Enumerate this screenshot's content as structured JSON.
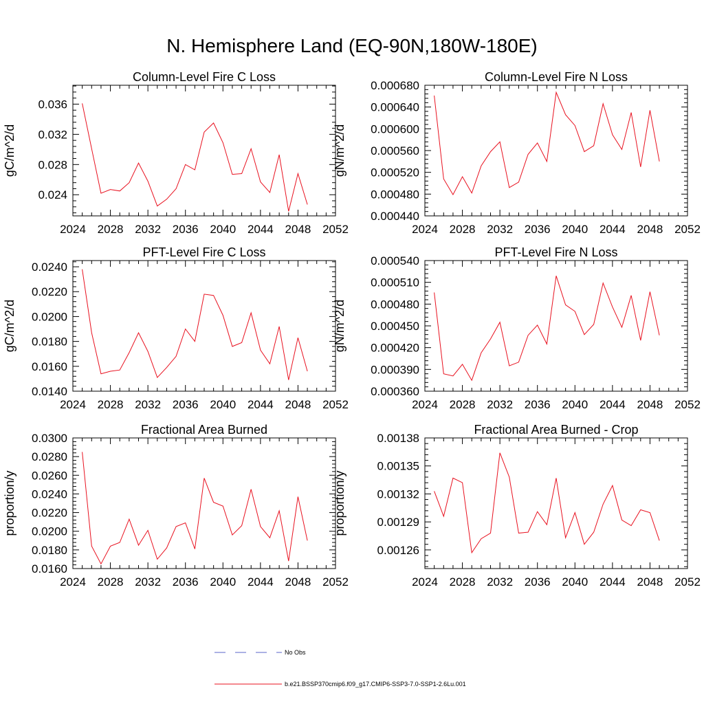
{
  "figure": {
    "title": "N. Hemisphere Land (EQ-90N,180W-180E)"
  },
  "colors": {
    "series": "#e8101e",
    "obs": "#5a63c8",
    "axis": "#000000"
  },
  "legend": [
    {
      "label": "No Obs",
      "style": "dashed",
      "color": "#5a63c8"
    },
    {
      "label": "b.e21.BSSP370cmip6.f09_g17.CMIP6-SSP3-7.0-SSP1-2.6Lu.001",
      "style": "solid",
      "color": "#e8101e"
    }
  ],
  "chart_data": [
    {
      "type": "line",
      "title": "Column-Level Fire C Loss",
      "ylabel": "gC/m^2/d",
      "xlim": [
        2024,
        2052
      ],
      "ylim": [
        0.0212,
        0.0385
      ],
      "xticks": [
        "2024",
        "2028",
        "2032",
        "2036",
        "2040",
        "2044",
        "2048",
        "2052"
      ],
      "yticks": [
        "0.024",
        "0.028",
        "0.032",
        "0.036"
      ],
      "x": [
        2025,
        2026,
        2027,
        2028,
        2029,
        2030,
        2031,
        2032,
        2033,
        2034,
        2035,
        2036,
        2037,
        2038,
        2039,
        2040,
        2041,
        2042,
        2043,
        2044,
        2045,
        2046,
        2047,
        2048,
        2049
      ],
      "values": [
        0.0361,
        0.0301,
        0.0242,
        0.0247,
        0.0245,
        0.0256,
        0.0282,
        0.0258,
        0.0225,
        0.0234,
        0.0248,
        0.028,
        0.0273,
        0.0323,
        0.0335,
        0.0309,
        0.0267,
        0.0268,
        0.0301,
        0.0257,
        0.0243,
        0.0293,
        0.0218,
        0.0268,
        0.0227
      ]
    },
    {
      "type": "line",
      "title": "Column-Level Fire N Loss",
      "ylabel": "gN/m^2/d",
      "xlim": [
        2024,
        2052
      ],
      "ylim": [
        0.00044,
        0.00068
      ],
      "xticks": [
        "2024",
        "2028",
        "2032",
        "2036",
        "2040",
        "2044",
        "2048",
        "2052"
      ],
      "yticks": [
        "0.000440",
        "0.000480",
        "0.000520",
        "0.000560",
        "0.000600",
        "0.000640",
        "0.000680"
      ],
      "x": [
        2025,
        2026,
        2027,
        2028,
        2029,
        2030,
        2031,
        2032,
        2033,
        2034,
        2035,
        2036,
        2037,
        2038,
        2039,
        2040,
        2041,
        2042,
        2043,
        2044,
        2045,
        2046,
        2047,
        2048,
        2049
      ],
      "values": [
        0.000661,
        0.000508,
        0.000479,
        0.000512,
        0.000482,
        0.000532,
        0.000558,
        0.000576,
        0.000492,
        0.000502,
        0.000553,
        0.000574,
        0.00054,
        0.000667,
        0.000626,
        0.000606,
        0.000558,
        0.000569,
        0.000646,
        0.000589,
        0.000562,
        0.00063,
        0.00053,
        0.000634,
        0.00054
      ]
    },
    {
      "type": "line",
      "title": "PFT-Level Fire C Loss",
      "ylabel": "gC/m^2/d",
      "xlim": [
        2024,
        2052
      ],
      "ylim": [
        0.014,
        0.0245
      ],
      "xticks": [
        "2024",
        "2028",
        "2032",
        "2036",
        "2040",
        "2044",
        "2048",
        "2052"
      ],
      "yticks": [
        "0.0140",
        "0.0160",
        "0.0180",
        "0.0200",
        "0.0220",
        "0.0240"
      ],
      "x": [
        2025,
        2026,
        2027,
        2028,
        2029,
        2030,
        2031,
        2032,
        2033,
        2034,
        2035,
        2036,
        2037,
        2038,
        2039,
        2040,
        2041,
        2042,
        2043,
        2044,
        2045,
        2046,
        2047,
        2048,
        2049
      ],
      "values": [
        0.0238,
        0.0187,
        0.0154,
        0.0156,
        0.0157,
        0.0171,
        0.0187,
        0.0172,
        0.0151,
        0.0159,
        0.0168,
        0.019,
        0.018,
        0.0218,
        0.0217,
        0.0201,
        0.0176,
        0.0179,
        0.0203,
        0.0173,
        0.0162,
        0.0192,
        0.0149,
        0.0183,
        0.0156
      ]
    },
    {
      "type": "line",
      "title": "PFT-Level Fire N Loss",
      "ylabel": "gN/m^2/d",
      "xlim": [
        2024,
        2052
      ],
      "ylim": [
        0.00036,
        0.00054
      ],
      "xticks": [
        "2024",
        "2028",
        "2032",
        "2036",
        "2040",
        "2044",
        "2048",
        "2052"
      ],
      "yticks": [
        "0.000360",
        "0.000390",
        "0.000420",
        "0.000450",
        "0.000480",
        "0.000510",
        "0.000540"
      ],
      "x": [
        2025,
        2026,
        2027,
        2028,
        2029,
        2030,
        2031,
        2032,
        2033,
        2034,
        2035,
        2036,
        2037,
        2038,
        2039,
        2040,
        2041,
        2042,
        2043,
        2044,
        2045,
        2046,
        2047,
        2048,
        2049
      ],
      "values": [
        0.000496,
        0.000384,
        0.000381,
        0.000397,
        0.000375,
        0.000413,
        0.000432,
        0.000455,
        0.000395,
        0.0004,
        0.000437,
        0.000451,
        0.000425,
        0.000519,
        0.000479,
        0.00047,
        0.000438,
        0.000452,
        0.000509,
        0.000476,
        0.000448,
        0.000492,
        0.00043,
        0.000497,
        0.000437
      ]
    },
    {
      "type": "line",
      "title": "Fractional Area Burned",
      "ylabel": "proportion/y",
      "xlim": [
        2024,
        2052
      ],
      "ylim": [
        0.016,
        0.03
      ],
      "xticks": [
        "2024",
        "2028",
        "2032",
        "2036",
        "2040",
        "2044",
        "2048",
        "2052"
      ],
      "yticks": [
        "0.0160",
        "0.0180",
        "0.0200",
        "0.0220",
        "0.0240",
        "0.0260",
        "0.0280",
        "0.0300"
      ],
      "x": [
        2025,
        2026,
        2027,
        2028,
        2029,
        2030,
        2031,
        2032,
        2033,
        2034,
        2035,
        2036,
        2037,
        2038,
        2039,
        2040,
        2041,
        2042,
        2043,
        2044,
        2045,
        2046,
        2047,
        2048,
        2049
      ],
      "values": [
        0.0285,
        0.0184,
        0.0165,
        0.0184,
        0.0188,
        0.0213,
        0.0185,
        0.0201,
        0.017,
        0.0182,
        0.0205,
        0.0209,
        0.0181,
        0.0257,
        0.0231,
        0.0227,
        0.0196,
        0.0206,
        0.0245,
        0.0205,
        0.0193,
        0.0222,
        0.0168,
        0.0237,
        0.019
      ]
    },
    {
      "type": "line",
      "title": "Fractional Area Burned - Crop",
      "ylabel": "proportion/y",
      "xlim": [
        2024,
        2052
      ],
      "ylim": [
        0.00124,
        0.00138
      ],
      "xticks": [
        "2024",
        "2028",
        "2032",
        "2036",
        "2040",
        "2044",
        "2048",
        "2052"
      ],
      "yticks": [
        "0.00126",
        "0.00129",
        "0.00132",
        "0.00135",
        "0.00138"
      ],
      "x": [
        2025,
        2026,
        2027,
        2028,
        2029,
        2030,
        2031,
        2032,
        2033,
        2034,
        2035,
        2036,
        2037,
        2038,
        2039,
        2040,
        2041,
        2042,
        2043,
        2044,
        2045,
        2046,
        2047,
        2048,
        2049
      ],
      "values": [
        0.001323,
        0.001296,
        0.001337,
        0.001332,
        0.001257,
        0.001272,
        0.001278,
        0.001364,
        0.001338,
        0.001278,
        0.001279,
        0.001301,
        0.001287,
        0.001337,
        0.001273,
        0.0013,
        0.001266,
        0.001279,
        0.001309,
        0.001329,
        0.001292,
        0.001286,
        0.001303,
        0.0013,
        0.00127
      ]
    }
  ]
}
